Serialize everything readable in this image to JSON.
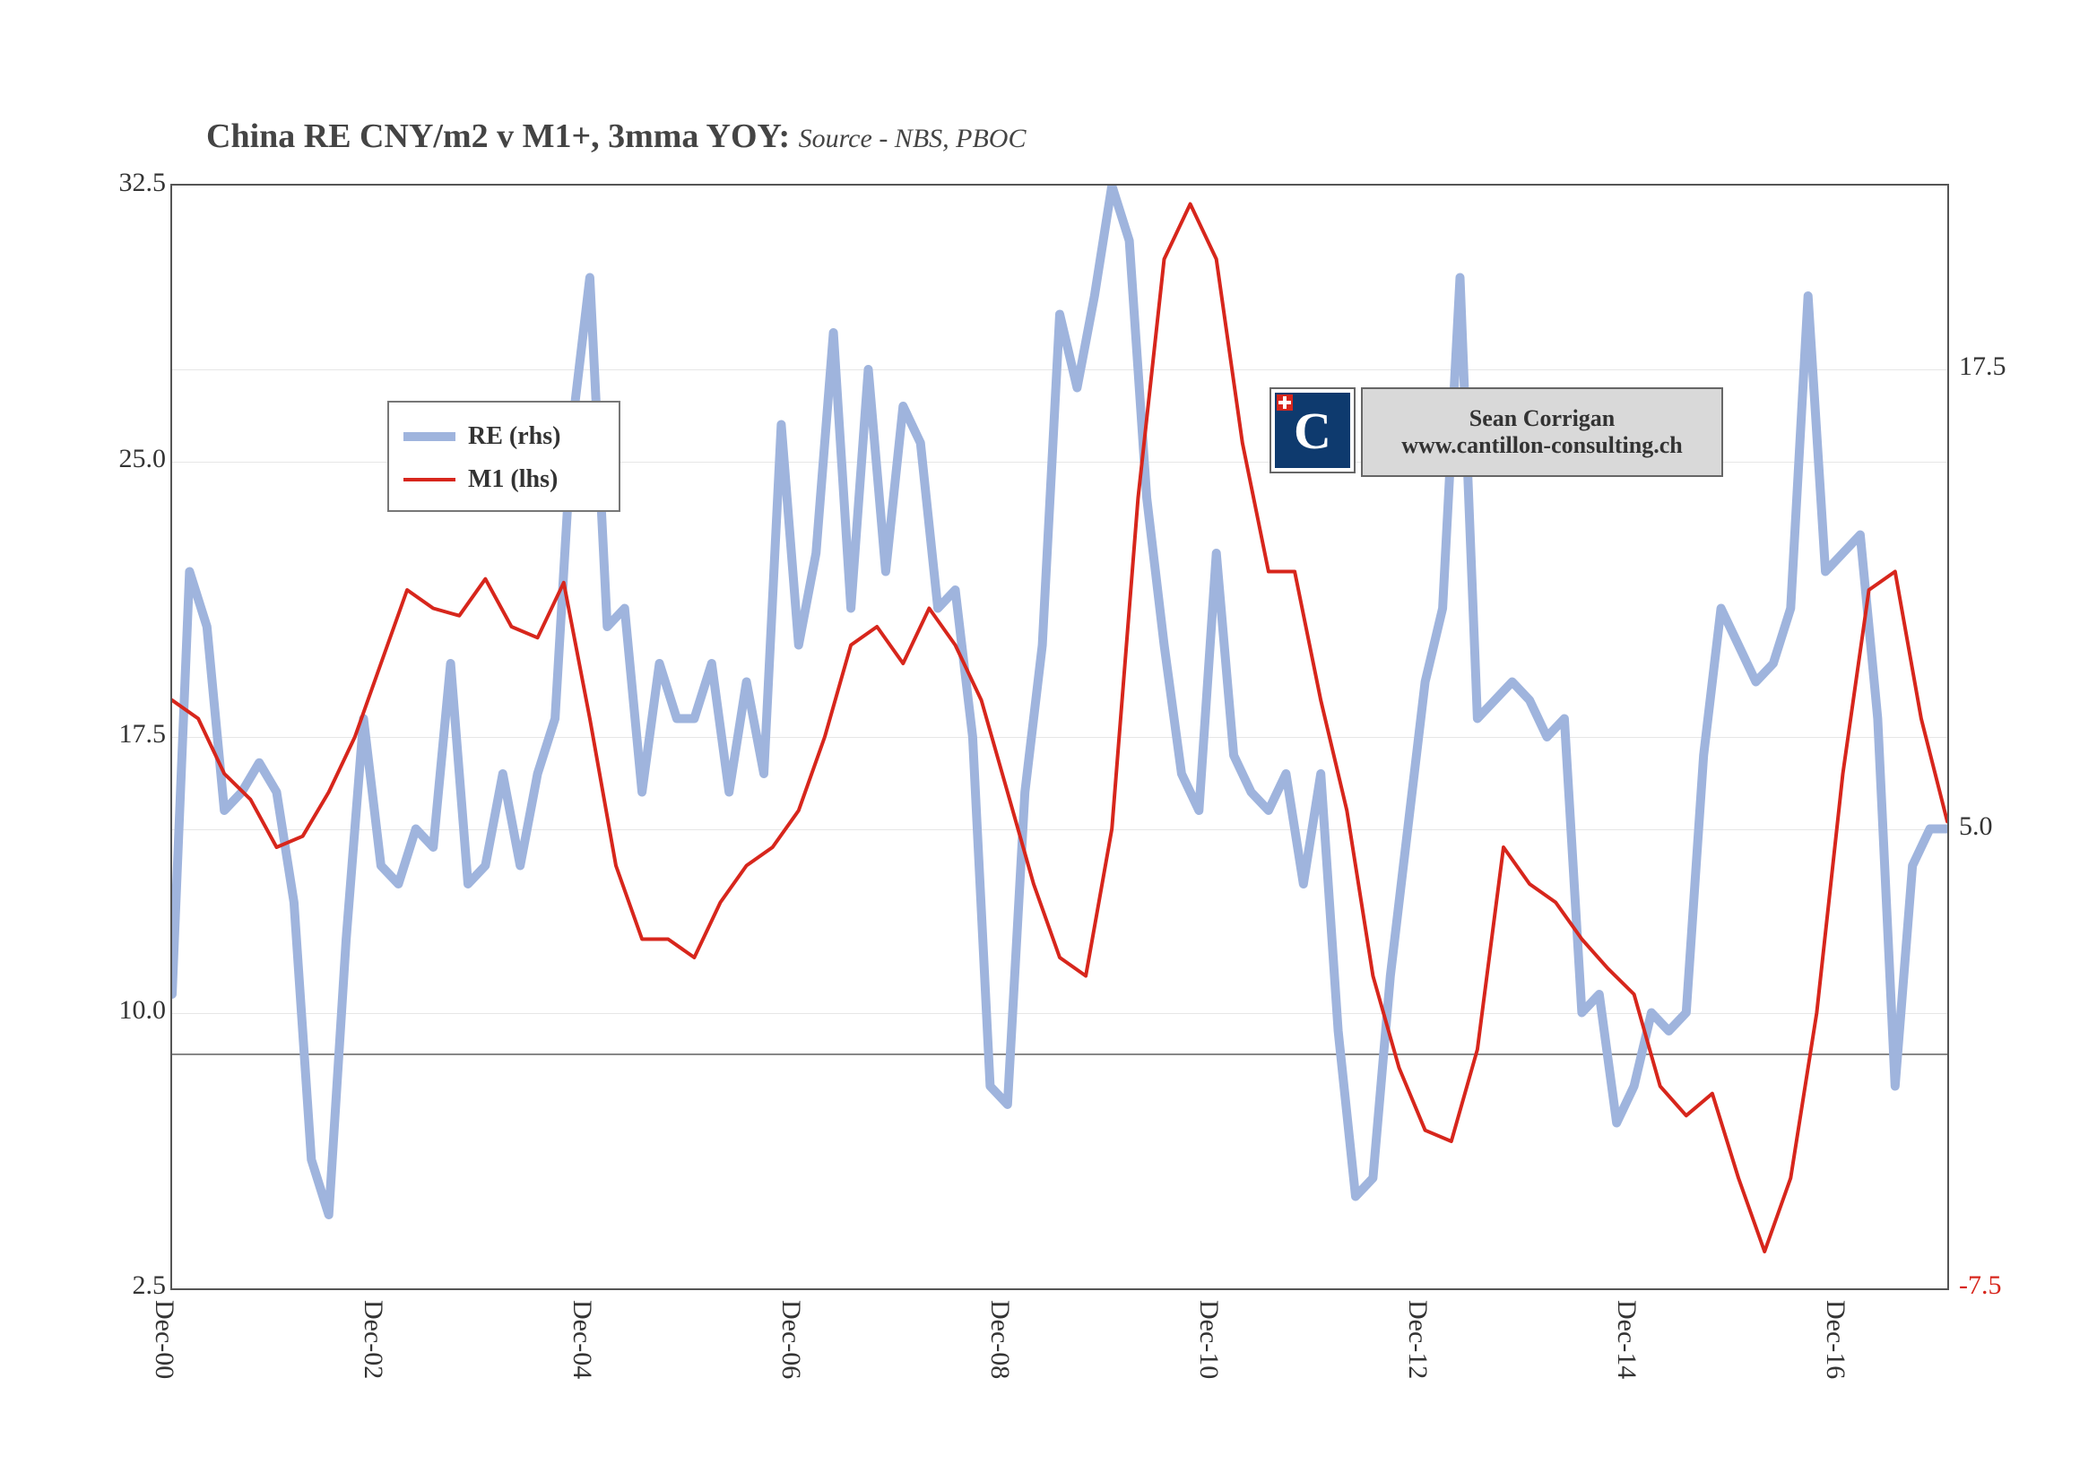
{
  "title_main": "China RE CNY/m2 v M1+, 3mma YOY:",
  "title_source": "Source - NBS, PBOC",
  "attribution": {
    "line1": "Sean Corrigan",
    "line2": "www.cantillon-consulting.ch"
  },
  "logo_letter": "C",
  "chart": {
    "type": "line",
    "background_color": "#ffffff",
    "border_color": "#555555",
    "grid_major_color": "#e6e6e6",
    "emphasis_line_color": "#888888",
    "left_axis": {
      "min": 2.5,
      "max": 32.5,
      "ticks": [
        2.5,
        10.0,
        17.5,
        25.0,
        32.5
      ]
    },
    "right_axis": {
      "min": -7.5,
      "max": 22.5,
      "ticks": [
        -7.5,
        5.0,
        17.5
      ],
      "neg_color": "#d7261c"
    },
    "left_emphasis_value": 8.9,
    "x_labels": [
      "Dec-00",
      "Dec-02",
      "Dec-04",
      "Dec-06",
      "Dec-08",
      "Dec-10",
      "Dec-12",
      "Dec-14",
      "Dec-16"
    ],
    "x_range_months": 204,
    "x_major_step_months": 24,
    "legend": {
      "items": [
        {
          "label": "RE (rhs)",
          "color": "#9fb4dd",
          "thick": 10
        },
        {
          "label": "M1 (lhs)",
          "color": "#d7261c",
          "thick": 4
        }
      ]
    },
    "series": {
      "RE_rhs": {
        "axis": "right",
        "color": "#9fb4dd",
        "width": 10,
        "description": "China real-estate price CNY/m2, 3-month moving average year-on-year % (right-hand scale)",
        "data": [
          [
            0,
            0.5
          ],
          [
            2,
            12.0
          ],
          [
            4,
            10.5
          ],
          [
            6,
            5.5
          ],
          [
            8,
            6.0
          ],
          [
            10,
            6.8
          ],
          [
            12,
            6.0
          ],
          [
            14,
            3.0
          ],
          [
            16,
            -4.0
          ],
          [
            18,
            -5.5
          ],
          [
            20,
            2.0
          ],
          [
            22,
            8.0
          ],
          [
            24,
            4.0
          ],
          [
            26,
            3.5
          ],
          [
            28,
            5.0
          ],
          [
            30,
            4.5
          ],
          [
            32,
            9.5
          ],
          [
            34,
            3.5
          ],
          [
            36,
            4.0
          ],
          [
            38,
            6.5
          ],
          [
            40,
            4.0
          ],
          [
            42,
            6.5
          ],
          [
            44,
            8.0
          ],
          [
            46,
            16.0
          ],
          [
            48,
            20.0
          ],
          [
            50,
            10.5
          ],
          [
            52,
            11.0
          ],
          [
            54,
            6.0
          ],
          [
            56,
            9.5
          ],
          [
            58,
            8.0
          ],
          [
            60,
            8.0
          ],
          [
            62,
            9.5
          ],
          [
            64,
            6.0
          ],
          [
            66,
            9.0
          ],
          [
            68,
            6.5
          ],
          [
            70,
            16.0
          ],
          [
            72,
            10.0
          ],
          [
            74,
            12.5
          ],
          [
            76,
            18.5
          ],
          [
            78,
            11.0
          ],
          [
            80,
            17.5
          ],
          [
            82,
            12.0
          ],
          [
            84,
            16.5
          ],
          [
            86,
            15.5
          ],
          [
            88,
            11.0
          ],
          [
            90,
            11.5
          ],
          [
            92,
            7.5
          ],
          [
            94,
            -2.0
          ],
          [
            96,
            -2.5
          ],
          [
            98,
            6.0
          ],
          [
            100,
            10.0
          ],
          [
            102,
            19.0
          ],
          [
            104,
            17.0
          ],
          [
            106,
            19.5
          ],
          [
            108,
            22.5
          ],
          [
            110,
            21.0
          ],
          [
            112,
            14.0
          ],
          [
            114,
            10.0
          ],
          [
            116,
            6.5
          ],
          [
            118,
            5.5
          ],
          [
            120,
            12.5
          ],
          [
            122,
            7.0
          ],
          [
            124,
            6.0
          ],
          [
            126,
            5.5
          ],
          [
            128,
            6.5
          ],
          [
            130,
            3.5
          ],
          [
            132,
            6.5
          ],
          [
            134,
            -0.5
          ],
          [
            136,
            -5.0
          ],
          [
            138,
            -4.5
          ],
          [
            140,
            1.0
          ],
          [
            142,
            5.0
          ],
          [
            144,
            9.0
          ],
          [
            146,
            11.0
          ],
          [
            148,
            20.0
          ],
          [
            150,
            8.0
          ],
          [
            152,
            8.5
          ],
          [
            154,
            9.0
          ],
          [
            156,
            8.5
          ],
          [
            158,
            7.5
          ],
          [
            160,
            8.0
          ],
          [
            162,
            0.0
          ],
          [
            164,
            0.5
          ],
          [
            166,
            -3.0
          ],
          [
            168,
            -2.0
          ],
          [
            170,
            0.0
          ],
          [
            172,
            -0.5
          ],
          [
            174,
            0.0
          ],
          [
            176,
            7.0
          ],
          [
            178,
            11.0
          ],
          [
            180,
            10.0
          ],
          [
            182,
            9.0
          ],
          [
            184,
            9.5
          ],
          [
            186,
            11.0
          ],
          [
            188,
            19.5
          ],
          [
            190,
            12.0
          ],
          [
            192,
            12.5
          ],
          [
            194,
            13.0
          ],
          [
            196,
            8.0
          ],
          [
            198,
            -2.0
          ],
          [
            200,
            4.0
          ],
          [
            202,
            5.0
          ],
          [
            204,
            5.0
          ]
        ]
      },
      "M1_lhs": {
        "axis": "left",
        "color": "#d7261c",
        "width": 4,
        "description": "China M1+ money supply, 3-month moving average year-on-year % (left-hand scale)",
        "data": [
          [
            0,
            18.5
          ],
          [
            3,
            18.0
          ],
          [
            6,
            16.5
          ],
          [
            9,
            15.8
          ],
          [
            12,
            14.5
          ],
          [
            15,
            14.8
          ],
          [
            18,
            16.0
          ],
          [
            21,
            17.5
          ],
          [
            24,
            19.5
          ],
          [
            27,
            21.5
          ],
          [
            30,
            21.0
          ],
          [
            33,
            20.8
          ],
          [
            36,
            21.8
          ],
          [
            39,
            20.5
          ],
          [
            42,
            20.2
          ],
          [
            45,
            21.7
          ],
          [
            48,
            18.0
          ],
          [
            51,
            14.0
          ],
          [
            54,
            12.0
          ],
          [
            57,
            12.0
          ],
          [
            60,
            11.5
          ],
          [
            63,
            13.0
          ],
          [
            66,
            14.0
          ],
          [
            69,
            14.5
          ],
          [
            72,
            15.5
          ],
          [
            75,
            17.5
          ],
          [
            78,
            20.0
          ],
          [
            81,
            20.5
          ],
          [
            84,
            19.5
          ],
          [
            87,
            21.0
          ],
          [
            90,
            20.0
          ],
          [
            93,
            18.5
          ],
          [
            96,
            16.0
          ],
          [
            99,
            13.5
          ],
          [
            102,
            11.5
          ],
          [
            105,
            11.0
          ],
          [
            108,
            15.0
          ],
          [
            111,
            24.0
          ],
          [
            114,
            30.5
          ],
          [
            117,
            32.0
          ],
          [
            120,
            30.5
          ],
          [
            123,
            25.5
          ],
          [
            126,
            22.0
          ],
          [
            129,
            22.0
          ],
          [
            132,
            18.5
          ],
          [
            135,
            15.5
          ],
          [
            138,
            11.0
          ],
          [
            141,
            8.5
          ],
          [
            144,
            6.8
          ],
          [
            147,
            6.5
          ],
          [
            150,
            9.0
          ],
          [
            153,
            14.5
          ],
          [
            156,
            13.5
          ],
          [
            159,
            13.0
          ],
          [
            162,
            12.0
          ],
          [
            165,
            11.2
          ],
          [
            168,
            10.5
          ],
          [
            171,
            8.0
          ],
          [
            174,
            7.2
          ],
          [
            177,
            7.8
          ],
          [
            180,
            5.5
          ],
          [
            183,
            3.5
          ],
          [
            186,
            5.5
          ],
          [
            189,
            10.0
          ],
          [
            192,
            16.5
          ],
          [
            195,
            21.5
          ],
          [
            198,
            22.0
          ],
          [
            201,
            18.0
          ],
          [
            204,
            15.2
          ]
        ]
      }
    }
  }
}
